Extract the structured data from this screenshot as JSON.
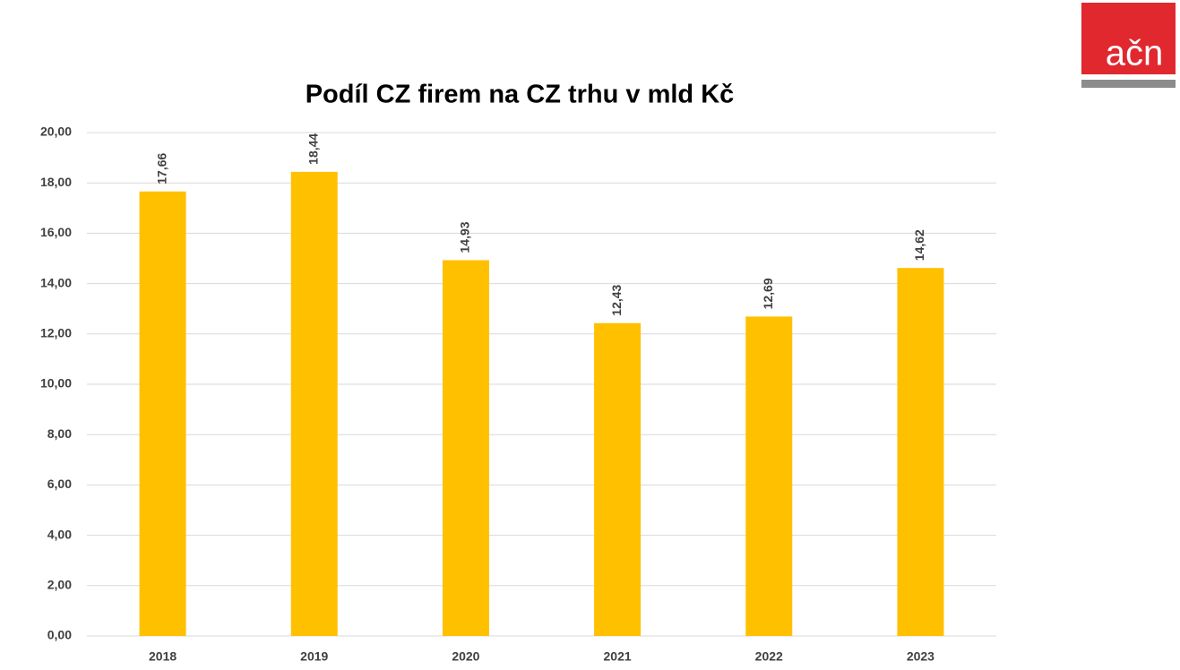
{
  "logo": "ačn",
  "chart_data": {
    "type": "bar",
    "title": "Podíl CZ firem na CZ trhu v mld Kč",
    "categories": [
      "2018",
      "2019",
      "2020",
      "2021",
      "2022",
      "2023"
    ],
    "values": [
      17.66,
      18.44,
      14.93,
      12.43,
      12.69,
      14.62
    ],
    "value_labels": [
      "17,66",
      "18,44",
      "14,93",
      "12,43",
      "12,69",
      "14,62"
    ],
    "color": "#ffc000",
    "ylim": [
      0,
      20
    ],
    "yticks": [
      {
        "value": 0,
        "label": "0,00"
      },
      {
        "value": 2,
        "label": "2,00"
      },
      {
        "value": 4,
        "label": "4,00"
      },
      {
        "value": 6,
        "label": "6,00"
      },
      {
        "value": 8,
        "label": "8,00"
      },
      {
        "value": 10,
        "label": "10,00"
      },
      {
        "value": 12,
        "label": "12,00"
      },
      {
        "value": 14,
        "label": "14,00"
      },
      {
        "value": 16,
        "label": "16,00"
      },
      {
        "value": 18,
        "label": "18,00"
      },
      {
        "value": 20,
        "label": "20,00"
      }
    ],
    "grid": true
  }
}
